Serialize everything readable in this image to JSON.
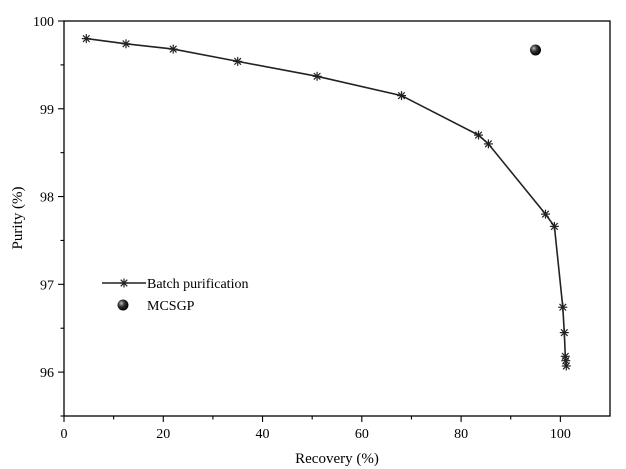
{
  "chart_data": {
    "type": "scatter",
    "title": "",
    "xlabel": "Recovery (%)",
    "ylabel": "Purity (%)",
    "xlim": [
      0,
      110
    ],
    "ylim": [
      95.5,
      100
    ],
    "x_ticks": [
      0,
      20,
      40,
      60,
      80,
      100
    ],
    "y_ticks": [
      96,
      97,
      98,
      99,
      100
    ],
    "x_tick_labels": [
      "0",
      "20",
      "40",
      "60",
      "80",
      "100"
    ],
    "y_tick_labels": [
      "96",
      "97",
      "98",
      "99",
      "100"
    ],
    "grid": false,
    "legend_position": "lower-left",
    "series": [
      {
        "name": "Batch purification",
        "kind": "line-star",
        "color": "#222222",
        "points": [
          [
            4.5,
            99.8
          ],
          [
            12.5,
            99.74
          ],
          [
            22.0,
            99.68
          ],
          [
            35.0,
            99.54
          ],
          [
            51.0,
            99.37
          ],
          [
            68.0,
            99.15
          ],
          [
            83.5,
            98.7
          ],
          [
            85.5,
            98.6
          ],
          [
            97.0,
            97.8
          ],
          [
            98.8,
            97.66
          ],
          [
            100.5,
            96.74
          ],
          [
            100.8,
            96.45
          ],
          [
            101.0,
            96.18
          ],
          [
            101.1,
            96.13
          ],
          [
            101.2,
            96.07
          ]
        ]
      },
      {
        "name": "MCSGP",
        "kind": "sphere",
        "color": "#111111",
        "points": [
          [
            95.0,
            99.67
          ]
        ]
      }
    ]
  }
}
